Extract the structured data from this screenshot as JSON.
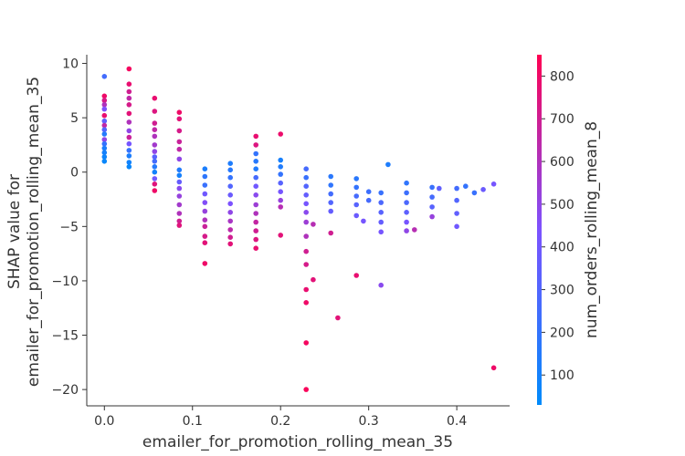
{
  "chart_data": {
    "type": "scatter",
    "title": "",
    "xlabel": "emailer_for_promotion_rolling_mean_35",
    "ylabel_lines": [
      "SHAP value for",
      "emailer_for_promotion_rolling_mean_35"
    ],
    "xlim": [
      -0.02,
      0.46
    ],
    "ylim": [
      -21.5,
      10.8
    ],
    "xticks": [
      0.0,
      0.1,
      0.2,
      0.3,
      0.4
    ],
    "xtick_labels": [
      "0.0",
      "0.1",
      "0.2",
      "0.3",
      "0.4"
    ],
    "yticks": [
      10,
      5,
      0,
      -5,
      -10,
      -15,
      -20
    ],
    "ytick_labels": [
      "10",
      "5",
      "0",
      "−5",
      "−10",
      "−15",
      "−20"
    ],
    "grid": false,
    "colorbar": {
      "label": "num_orders_rolling_mean_8",
      "range": [
        30,
        850
      ],
      "ticks": [
        100,
        200,
        300,
        400,
        500,
        600,
        700,
        800
      ],
      "tick_labels": [
        "100",
        "200",
        "300",
        "400",
        "500",
        "600",
        "700",
        "800"
      ],
      "colors": [
        "#008bfb",
        "#7c52ff",
        "#ff0052"
      ]
    },
    "points": [
      [
        0.0,
        8.8,
        250
      ],
      [
        0.0,
        7.0,
        800
      ],
      [
        0.0,
        6.6,
        720
      ],
      [
        0.0,
        6.2,
        600
      ],
      [
        0.0,
        5.8,
        450
      ],
      [
        0.0,
        5.2,
        780
      ],
      [
        0.0,
        4.7,
        350
      ],
      [
        0.0,
        4.3,
        650
      ],
      [
        0.0,
        3.9,
        300
      ],
      [
        0.0,
        3.5,
        150
      ],
      [
        0.0,
        3.0,
        500
      ],
      [
        0.0,
        2.6,
        200
      ],
      [
        0.0,
        2.2,
        120
      ],
      [
        0.0,
        1.8,
        100
      ],
      [
        0.0,
        1.4,
        80
      ],
      [
        0.0,
        1.0,
        60
      ],
      [
        0.028,
        9.5,
        820
      ],
      [
        0.028,
        8.1,
        780
      ],
      [
        0.028,
        7.4,
        700
      ],
      [
        0.028,
        6.8,
        650
      ],
      [
        0.028,
        6.2,
        720
      ],
      [
        0.028,
        5.4,
        760
      ],
      [
        0.028,
        4.6,
        600
      ],
      [
        0.028,
        3.8,
        500
      ],
      [
        0.028,
        3.2,
        680
      ],
      [
        0.028,
        2.6,
        420
      ],
      [
        0.028,
        2.0,
        200
      ],
      [
        0.028,
        1.5,
        120
      ],
      [
        0.028,
        0.9,
        90
      ],
      [
        0.028,
        0.5,
        60
      ],
      [
        0.057,
        6.8,
        780
      ],
      [
        0.057,
        5.6,
        740
      ],
      [
        0.057,
        4.5,
        700
      ],
      [
        0.057,
        3.9,
        650
      ],
      [
        0.057,
        3.3,
        600
      ],
      [
        0.057,
        2.5,
        560
      ],
      [
        0.057,
        1.9,
        500
      ],
      [
        0.057,
        1.4,
        320
      ],
      [
        0.057,
        1.0,
        250
      ],
      [
        0.057,
        0.5,
        150
      ],
      [
        0.057,
        0.0,
        90
      ],
      [
        0.057,
        -0.6,
        400
      ],
      [
        0.057,
        -1.1,
        750
      ],
      [
        0.057,
        -1.7,
        800
      ],
      [
        0.085,
        5.5,
        800
      ],
      [
        0.085,
        4.9,
        760
      ],
      [
        0.085,
        3.8,
        720
      ],
      [
        0.085,
        2.8,
        680
      ],
      [
        0.085,
        2.1,
        650
      ],
      [
        0.085,
        1.2,
        500
      ],
      [
        0.085,
        0.2,
        140
      ],
      [
        0.085,
        -0.3,
        100
      ],
      [
        0.085,
        -0.9,
        360
      ],
      [
        0.085,
        -1.5,
        480
      ],
      [
        0.085,
        -2.2,
        520
      ],
      [
        0.085,
        -3.0,
        560
      ],
      [
        0.085,
        -3.8,
        600
      ],
      [
        0.085,
        -4.5,
        700
      ],
      [
        0.085,
        -4.9,
        750
      ],
      [
        0.114,
        0.3,
        120
      ],
      [
        0.114,
        -0.4,
        180
      ],
      [
        0.114,
        -1.2,
        220
      ],
      [
        0.114,
        -2.0,
        400
      ],
      [
        0.114,
        -2.8,
        460
      ],
      [
        0.114,
        -3.6,
        520
      ],
      [
        0.114,
        -4.4,
        600
      ],
      [
        0.114,
        -5.0,
        680
      ],
      [
        0.114,
        -5.9,
        720
      ],
      [
        0.114,
        -6.5,
        760
      ],
      [
        0.114,
        -8.4,
        800
      ],
      [
        0.143,
        0.8,
        130
      ],
      [
        0.143,
        0.2,
        160
      ],
      [
        0.143,
        -0.5,
        200
      ],
      [
        0.143,
        -1.3,
        300
      ],
      [
        0.143,
        -2.1,
        380
      ],
      [
        0.143,
        -2.9,
        440
      ],
      [
        0.143,
        -3.7,
        500
      ],
      [
        0.143,
        -4.5,
        580
      ],
      [
        0.143,
        -5.3,
        640
      ],
      [
        0.143,
        -6.0,
        700
      ],
      [
        0.143,
        -6.6,
        760
      ],
      [
        0.172,
        3.3,
        780
      ],
      [
        0.172,
        2.5,
        740
      ],
      [
        0.172,
        1.7,
        200
      ],
      [
        0.172,
        1.0,
        160
      ],
      [
        0.172,
        0.3,
        140
      ],
      [
        0.172,
        -0.5,
        260
      ],
      [
        0.172,
        -1.3,
        400
      ],
      [
        0.172,
        -2.1,
        480
      ],
      [
        0.172,
        -3.0,
        540
      ],
      [
        0.172,
        -3.8,
        600
      ],
      [
        0.172,
        -4.6,
        660
      ],
      [
        0.172,
        -5.4,
        700
      ],
      [
        0.172,
        -6.2,
        740
      ],
      [
        0.172,
        -7.0,
        780
      ],
      [
        0.2,
        3.5,
        790
      ],
      [
        0.2,
        1.1,
        110
      ],
      [
        0.2,
        0.5,
        140
      ],
      [
        0.2,
        -0.2,
        200
      ],
      [
        0.2,
        -1.0,
        320
      ],
      [
        0.2,
        -1.8,
        420
      ],
      [
        0.2,
        -2.6,
        520
      ],
      [
        0.2,
        -3.2,
        620
      ],
      [
        0.2,
        -5.8,
        760
      ],
      [
        0.229,
        0.3,
        260
      ],
      [
        0.229,
        -0.5,
        220
      ],
      [
        0.229,
        -1.3,
        300
      ],
      [
        0.229,
        -2.1,
        360
      ],
      [
        0.229,
        -2.9,
        420
      ],
      [
        0.229,
        -3.7,
        480
      ],
      [
        0.229,
        -4.6,
        540
      ],
      [
        0.229,
        -5.9,
        600
      ],
      [
        0.229,
        -7.3,
        700
      ],
      [
        0.229,
        -8.5,
        720
      ],
      [
        0.229,
        -10.8,
        780
      ],
      [
        0.229,
        -12.0,
        800
      ],
      [
        0.229,
        -15.7,
        820
      ],
      [
        0.229,
        -20.0,
        830
      ],
      [
        0.237,
        -4.8,
        620
      ],
      [
        0.237,
        -9.9,
        760
      ],
      [
        0.257,
        -0.4,
        170
      ],
      [
        0.257,
        -1.2,
        190
      ],
      [
        0.257,
        -2.0,
        250
      ],
      [
        0.257,
        -2.8,
        300
      ],
      [
        0.257,
        -3.6,
        360
      ],
      [
        0.257,
        -5.6,
        700
      ],
      [
        0.265,
        -13.4,
        760
      ],
      [
        0.286,
        -0.6,
        170
      ],
      [
        0.286,
        -1.4,
        200
      ],
      [
        0.286,
        -2.2,
        260
      ],
      [
        0.286,
        -3.0,
        320
      ],
      [
        0.286,
        -4.0,
        380
      ],
      [
        0.286,
        -9.5,
        780
      ],
      [
        0.294,
        -4.5,
        420
      ],
      [
        0.3,
        -1.8,
        230
      ],
      [
        0.3,
        -2.6,
        260
      ],
      [
        0.314,
        -1.9,
        220
      ],
      [
        0.314,
        -2.8,
        280
      ],
      [
        0.314,
        -3.7,
        320
      ],
      [
        0.314,
        -4.6,
        360
      ],
      [
        0.314,
        -5.5,
        420
      ],
      [
        0.314,
        -10.4,
        480
      ],
      [
        0.322,
        0.7,
        130
      ],
      [
        0.343,
        -1.0,
        190
      ],
      [
        0.343,
        -1.9,
        230
      ],
      [
        0.343,
        -2.8,
        280
      ],
      [
        0.343,
        -3.7,
        340
      ],
      [
        0.343,
        -4.6,
        420
      ],
      [
        0.343,
        -5.4,
        500
      ],
      [
        0.352,
        -5.3,
        620
      ],
      [
        0.372,
        -1.4,
        220
      ],
      [
        0.372,
        -2.3,
        260
      ],
      [
        0.372,
        -3.2,
        320
      ],
      [
        0.372,
        -4.1,
        520
      ],
      [
        0.38,
        -1.5,
        350
      ],
      [
        0.4,
        -1.5,
        250
      ],
      [
        0.4,
        -2.6,
        300
      ],
      [
        0.4,
        -3.8,
        350
      ],
      [
        0.4,
        -5.0,
        400
      ],
      [
        0.41,
        -1.3,
        200
      ],
      [
        0.42,
        -1.9,
        220
      ],
      [
        0.43,
        -1.6,
        380
      ],
      [
        0.442,
        -1.1,
        420
      ],
      [
        0.442,
        -18.0,
        800
      ]
    ]
  }
}
